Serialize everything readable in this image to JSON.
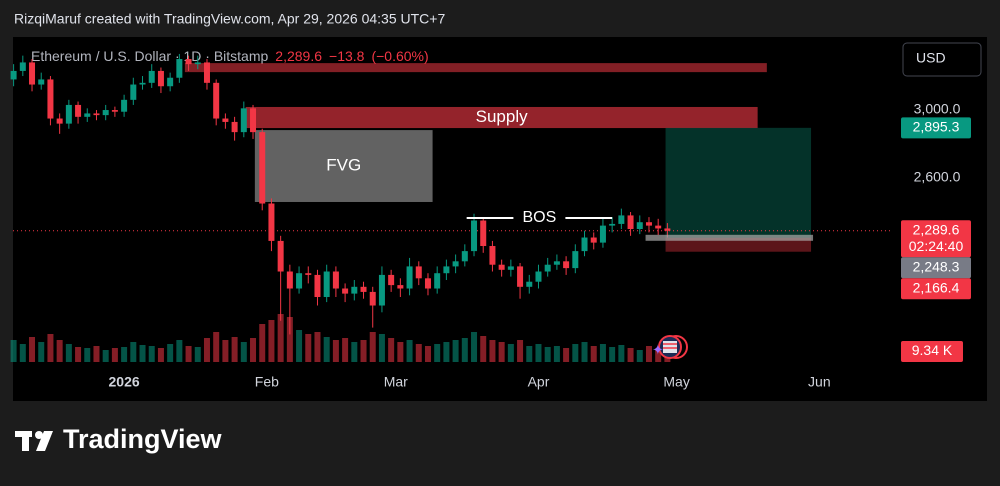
{
  "header": {
    "text": "RizqiMaruf created with TradingView.com, Apr 29, 2026 04:35 UTC+7"
  },
  "chart_data": {
    "type": "candlestick",
    "title": "Ethereum / U.S. Dollar · 1D · Bitstamp",
    "last": {
      "value": 2289.6,
      "label": "2,289.6"
    },
    "change": {
      "value": -13.8,
      "label": "−13.8"
    },
    "change_pct": {
      "value": -0.6,
      "label": "(−0.60%)"
    },
    "currency": "USD",
    "up_color": "#089981",
    "down_color": "#f23645",
    "open": [
      3180,
      3230,
      3280,
      3150,
      3180,
      2950,
      2920,
      3030,
      2960,
      2980,
      2970,
      3000,
      2990,
      3060,
      3150,
      3160,
      3230,
      3140,
      3190,
      3300,
      3270,
      3280,
      3160,
      2950,
      2930,
      2870,
      3010,
      2870,
      2450,
      2230,
      2050,
      1950,
      2040,
      2030,
      1900,
      2050,
      1950,
      1920,
      1960,
      1930,
      1850,
      2030,
      1970,
      1950,
      2080,
      2010,
      1950,
      2040,
      2080,
      2110,
      2170,
      2350,
      2200,
      2090,
      2060,
      2080,
      1960,
      1990,
      2050,
      2090,
      2110,
      2070,
      2170,
      2250,
      2220,
      2320,
      2330,
      2380,
      2300,
      2340,
      2320,
      2303.4
    ],
    "high": [
      3270,
      3320,
      3300,
      3220,
      3200,
      2980,
      3060,
      3050,
      3010,
      3000,
      3030,
      3020,
      3090,
      3190,
      3200,
      3270,
      3250,
      3220,
      3330,
      3320,
      3320,
      3300,
      3180,
      2980,
      2960,
      3050,
      3030,
      2890,
      2480,
      2260,
      2090,
      2080,
      2080,
      2060,
      2090,
      2080,
      1980,
      2000,
      1990,
      1960,
      2080,
      2060,
      2010,
      2130,
      2110,
      2040,
      2080,
      2120,
      2150,
      2210,
      2390,
      2370,
      2230,
      2120,
      2120,
      2100,
      2030,
      2090,
      2130,
      2150,
      2140,
      2210,
      2290,
      2280,
      2360,
      2370,
      2420,
      2400,
      2380,
      2370,
      2360,
      2335
    ],
    "low": [
      3140,
      3200,
      3110,
      3120,
      2910,
      2860,
      2890,
      2920,
      2930,
      2940,
      2940,
      2960,
      2960,
      3030,
      3120,
      3130,
      3100,
      3110,
      3160,
      3230,
      3240,
      3120,
      2910,
      2890,
      2820,
      2840,
      2830,
      2410,
      2170,
      1760,
      1680,
      1920,
      1980,
      1850,
      1870,
      1900,
      1870,
      1880,
      1890,
      1720,
      1810,
      1930,
      1900,
      1910,
      1970,
      1910,
      1920,
      2000,
      2040,
      2080,
      2140,
      2160,
      2050,
      2020,
      2020,
      1890,
      1920,
      1950,
      2020,
      2060,
      2030,
      2040,
      2140,
      2180,
      2190,
      2280,
      2300,
      2260,
      2270,
      2280,
      2265,
      2250
    ],
    "close": [
      3230,
      3280,
      3150,
      3180,
      2950,
      2920,
      3030,
      2960,
      2980,
      2970,
      3000,
      2990,
      3060,
      3150,
      3160,
      3230,
      3140,
      3190,
      3300,
      3270,
      3280,
      3160,
      2950,
      2930,
      2870,
      3010,
      2870,
      2450,
      2230,
      2050,
      1950,
      2040,
      2030,
      1900,
      2050,
      1950,
      1920,
      1960,
      1930,
      1850,
      2030,
      1970,
      1950,
      2080,
      2010,
      1950,
      2040,
      2080,
      2110,
      2170,
      2350,
      2200,
      2090,
      2060,
      2080,
      1960,
      1990,
      2050,
      2090,
      2110,
      2070,
      2170,
      2250,
      2220,
      2320,
      2330,
      2380,
      2300,
      2340,
      2320,
      2303.4,
      2289.6
    ],
    "volume": [
      22,
      18,
      25,
      20,
      28,
      22,
      18,
      15,
      14,
      16,
      12,
      14,
      15,
      20,
      17,
      16,
      14,
      18,
      22,
      16,
      15,
      24,
      30,
      22,
      25,
      20,
      24,
      38,
      42,
      48,
      45,
      32,
      28,
      30,
      25,
      22,
      24,
      20,
      22,
      30,
      28,
      24,
      20,
      22,
      18,
      16,
      18,
      20,
      22,
      24,
      30,
      26,
      22,
      20,
      18,
      22,
      16,
      18,
      15,
      16,
      14,
      18,
      20,
      16,
      18,
      15,
      17,
      14,
      12,
      16,
      13,
      9.34
    ],
    "xlim": [
      -0.5,
      95.5
    ],
    "xticks": [
      {
        "value": 12,
        "label": "2026"
      },
      {
        "value": 27.5,
        "label": "Feb"
      },
      {
        "value": 41.5,
        "label": "Mar"
      },
      {
        "value": 57,
        "label": "Apr"
      },
      {
        "value": 72,
        "label": "May"
      },
      {
        "value": 87.5,
        "label": "Jun"
      }
    ],
    "ylim": [
      1500,
      3412
    ],
    "yticks": [
      {
        "value": 3000,
        "label": "3,000.0"
      },
      {
        "value": 2600,
        "label": "2,600.0"
      }
    ],
    "zones": [
      {
        "x": [
          18.6,
          81.8
        ],
        "y": [
          3223,
          3276
        ],
        "color": "rgba(210,50,60,0.62)"
      },
      {
        "x": [
          25.2,
          80.8
        ],
        "y": [
          2894,
          3018
        ],
        "color": "rgba(190,45,55,0.78)",
        "label": "Supply"
      },
      {
        "x": [
          26.2,
          45.5
        ],
        "y": [
          2459,
          2882
        ],
        "color": "rgba(125,125,125,0.78)",
        "label": "FVG"
      },
      {
        "x": [
          70.8,
          86.6
        ],
        "y": [
          2248.3,
          2895.3
        ],
        "color": "rgba(8,110,90,0.45)"
      },
      {
        "x": [
          70.8,
          86.6
        ],
        "y": [
          2166.4,
          2248.3
        ],
        "color": "rgba(242,54,69,0.38)"
      }
    ],
    "bos": {
      "label": "BOS",
      "x": [
        49.2,
        65
      ],
      "y": 2365
    },
    "price_tags": [
      {
        "value": 2895.3,
        "label": "2,895.3",
        "color": "#089981"
      },
      {
        "value": 2289.6,
        "label": "2,289.6",
        "sub": "02:24:40",
        "color": "#f23645",
        "dotted_line": true
      },
      {
        "value": 2248.3,
        "label": "2,248.3",
        "color": "#787b86"
      },
      {
        "value": 2166.4,
        "label": "2,166.4",
        "color": "#f23645"
      }
    ],
    "volume_tag": {
      "value": 9.34,
      "label": "9.34 K",
      "color": "#f23645"
    }
  },
  "footer": {
    "brand": "TradingView"
  }
}
